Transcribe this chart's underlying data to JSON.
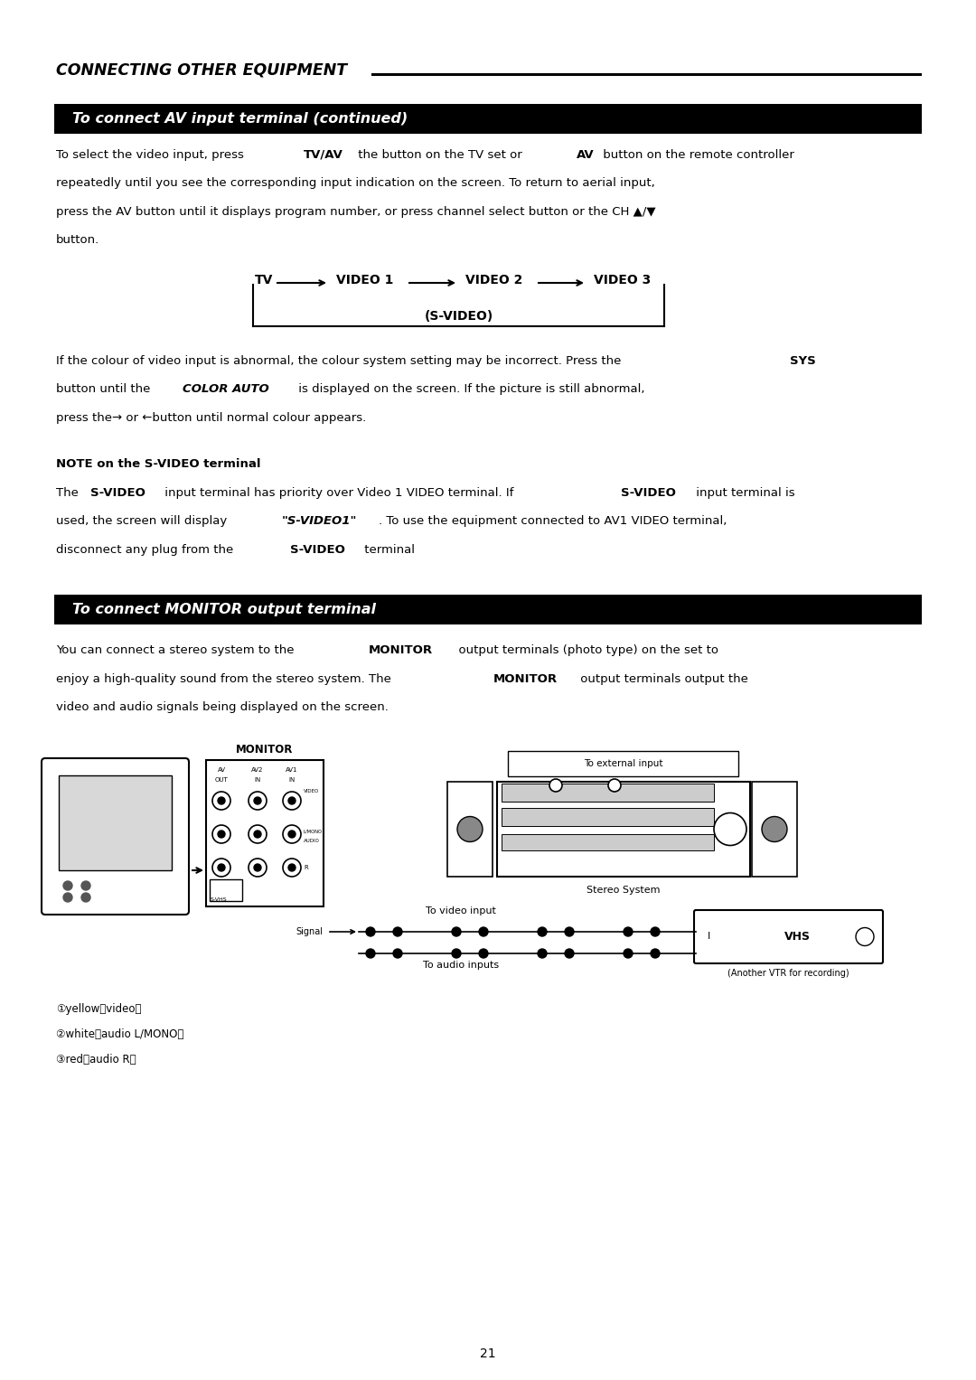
{
  "page_width": 10.8,
  "page_height": 15.27,
  "bg_color": "#ffffff",
  "lm": 0.62,
  "rm": 10.18,
  "section1_header": "CONNECTING OTHER EQUIPMENT",
  "section2_header": "To connect AV input terminal (continued)",
  "section3_header": "To connect MONITOR output terminal",
  "header_bg": "#000000",
  "header_fg": "#ffffff",
  "page_number": "21"
}
